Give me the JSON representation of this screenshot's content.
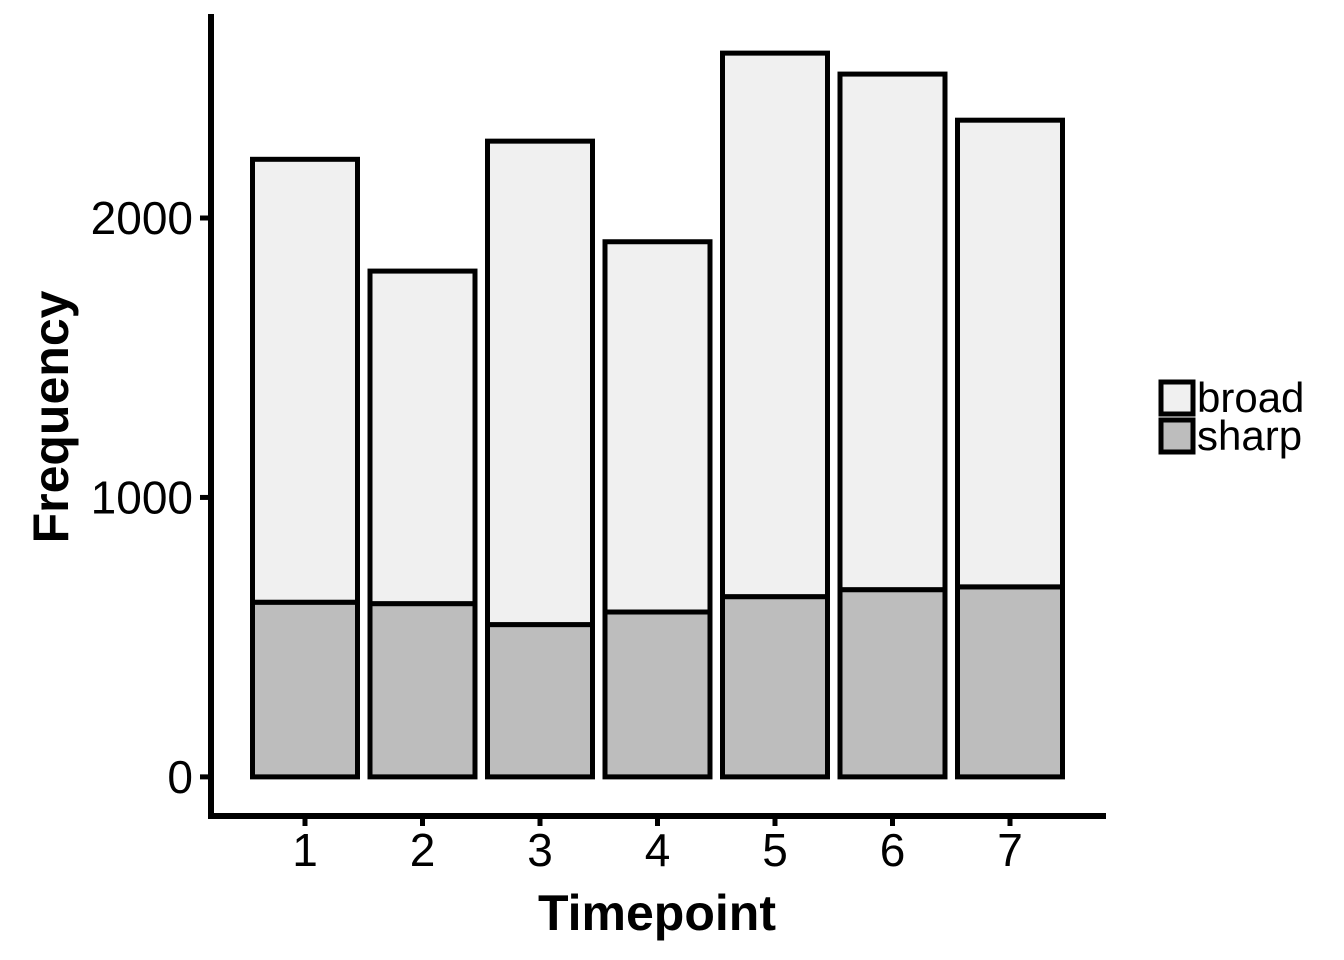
{
  "chart_data": {
    "type": "bar",
    "stacked": true,
    "xlabel": "Timepoint",
    "ylabel": "Frequency",
    "categories": [
      "1",
      "2",
      "3",
      "4",
      "5",
      "6",
      "7"
    ],
    "series": [
      {
        "name": "sharp",
        "values": [
          625,
          620,
          545,
          590,
          645,
          670,
          680
        ],
        "color": "#bdbdbd"
      },
      {
        "name": "broad",
        "values": [
          1585,
          1190,
          1730,
          1325,
          1945,
          1845,
          1670
        ],
        "color": "#f0f0f0"
      }
    ],
    "yticks": [
      0,
      1000,
      2000
    ],
    "ylim": [
      -140,
      2730
    ],
    "grid": false,
    "legend": {
      "position": "right",
      "order": [
        "broad",
        "sharp"
      ]
    }
  }
}
